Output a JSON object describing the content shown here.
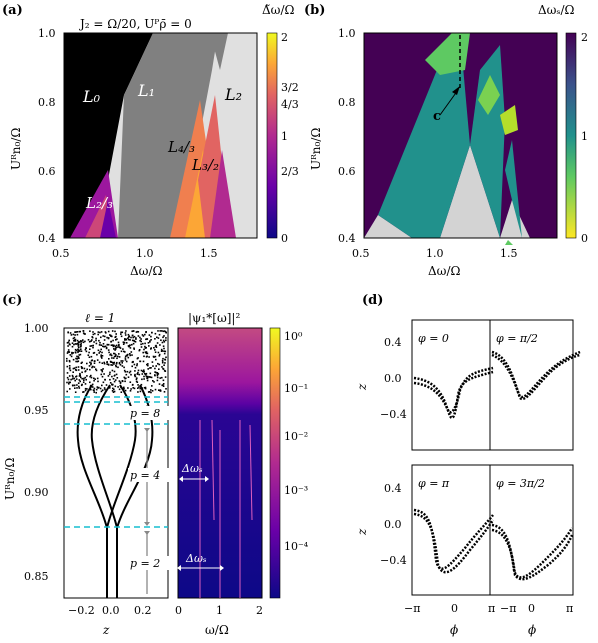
{
  "panels": {
    "a": {
      "label": "(a)",
      "title": "J₂ = Ω/20,  Uᴾρ̄ = 0",
      "xlabel": "Δω/Ω",
      "ylabel": "Uᴿn₀/Ω",
      "xticks": [
        "0.5",
        "1.0",
        "1.5"
      ],
      "yticks": [
        "1.0",
        "0.8",
        "0.6",
        "0.4"
      ],
      "colorbar_label": "Δ̃ω/Ω",
      "colorbar_ticks": [
        "2",
        "3/2",
        "4/3",
        "1",
        "2/3",
        "0"
      ],
      "region_labels": [
        "L₀",
        "L₁",
        "L₂",
        "L₄/₃",
        "L₃/₂",
        "L₂/₃"
      ]
    },
    "b": {
      "label": "(b)",
      "xlabel": "Δω/Ω",
      "ylabel": "Uᴿn₀/Ω",
      "xticks": [
        "0.5",
        "1.0",
        "1.5"
      ],
      "yticks": [
        "1.0",
        "0.8",
        "0.6",
        "0.4"
      ],
      "colorbar_label": "Δωₛ/Ω",
      "colorbar_ticks": [
        "2",
        "1",
        "0"
      ],
      "marker": "c"
    },
    "c": {
      "label": "(c)",
      "left_title": "ℓ = 1",
      "right_title": "|ψ₁*[ω]|²",
      "ylabel": "Uᴿn₀/Ω",
      "left_xlabel": "z",
      "right_xlabel": "ω/Ω",
      "yticks": [
        "1.00",
        "0.95",
        "0.90",
        "0.85"
      ],
      "left_xticks": [
        "−0.2",
        "0.0",
        "0.2"
      ],
      "right_xticks": [
        "0",
        "1",
        "2"
      ],
      "period_labels": [
        "p = 8",
        "p = 4",
        "p = 2"
      ],
      "spacing_label": "Δωₛ",
      "colorbar_ticks": [
        "10⁰",
        "10⁻¹",
        "10⁻²",
        "10⁻³",
        "10⁻⁴"
      ]
    },
    "d": {
      "label": "(d)",
      "subplots": [
        "φ = 0",
        "φ = π/2",
        "φ = π",
        "φ = 3π/2"
      ],
      "xlabel": "ϕ",
      "ylabel": "z",
      "xticks": [
        "−π",
        "0",
        "π"
      ],
      "yticks": [
        "0.4",
        "0.0",
        "−0.4"
      ]
    }
  },
  "colors": {
    "plasma_dark": "#0d0887",
    "plasma_light": "#f0f921",
    "gray_region": "#808080",
    "light_gray": "#e0e0e0",
    "viridis_dark": "#440154",
    "viridis_teal": "#21918c",
    "viridis_yellow": "#fde725",
    "cyan_dash": "#17becf",
    "arrow_gray": "#888888"
  }
}
